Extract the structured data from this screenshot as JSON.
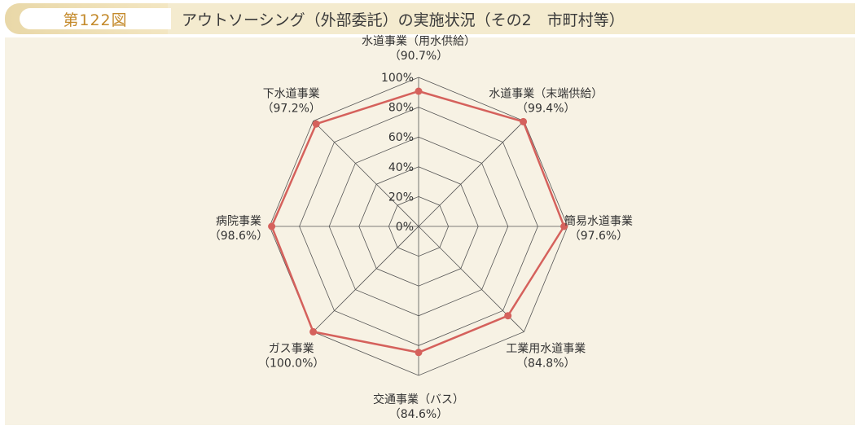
{
  "figure": {
    "number_label": "第122図",
    "title": "アウトソーシング（外部委託）の実施状況（その2　市町村等）"
  },
  "chart_data": {
    "type": "radar",
    "title": "アウトソーシング（外部委託）の実施状況（その2　市町村等）",
    "rlim": [
      0,
      100
    ],
    "ticks": [
      {
        "value": 0,
        "label": "0%"
      },
      {
        "value": 20,
        "label": "20%"
      },
      {
        "value": 40,
        "label": "40%"
      },
      {
        "value": 60,
        "label": "60%"
      },
      {
        "value": 80,
        "label": "80%"
      },
      {
        "value": 100,
        "label": "100%"
      }
    ],
    "categories": [
      {
        "name": "水道事業（用水供給）",
        "value_label": "（90.7%）",
        "value": 90.7
      },
      {
        "name": "水道事業（末端供給）",
        "value_label": "（99.4%）",
        "value": 99.4
      },
      {
        "name": "簡易水道事業",
        "value_label": "（97.6%）",
        "value": 97.6
      },
      {
        "name": "工業用水道事業",
        "value_label": "（84.8%）",
        "value": 84.8
      },
      {
        "name": "交通事業（バス）",
        "value_label": "（84.6%）",
        "value": 84.6
      },
      {
        "name": "ガス事業",
        "value_label": "（100.0%）",
        "value": 100.0
      },
      {
        "name": "病院事業",
        "value_label": "（98.6%）",
        "value": 98.6
      },
      {
        "name": "下水道事業",
        "value_label": "（97.2%）",
        "value": 97.2
      }
    ],
    "series_color": "#d5615c",
    "grid_color": "#555555"
  }
}
